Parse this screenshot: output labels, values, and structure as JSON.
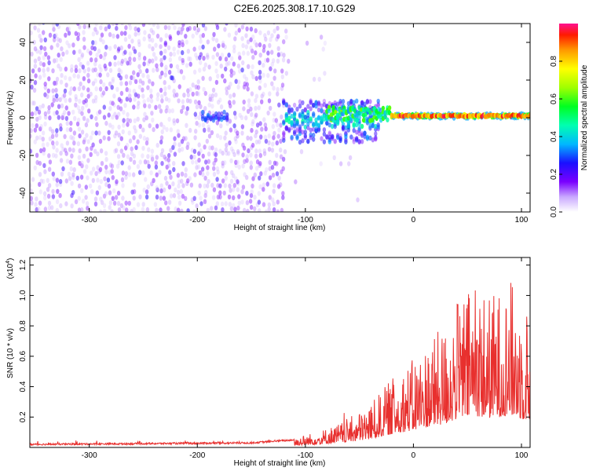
{
  "title": "C2E6.2025.308.17.10.G29",
  "colors": {
    "snr_line": "#e8302e",
    "axis": "#000000",
    "speckle_purple": "#6a00ff",
    "background": "#ffffff"
  },
  "chart_data": [
    {
      "type": "heatmap",
      "name": "spectrogram",
      "title": "C2E6.2025.308.17.10.G29",
      "xlabel": "Height of straight line (km)",
      "ylabel": "Frequency (Hz)",
      "xlim": [
        -355,
        108
      ],
      "ylim": [
        -50,
        50
      ],
      "xticks": [
        -300,
        -200,
        -100,
        0,
        100
      ],
      "yticks": [
        -40,
        -20,
        0,
        20,
        40
      ],
      "colorbar": {
        "label": "Normalized spectral amplitude",
        "range": [
          0,
          1
        ],
        "ticks": [
          0.0,
          0.2,
          0.4,
          0.6,
          0.8
        ],
        "tick_labels": [
          "0.0",
          "0.2",
          "0.4",
          "0.6",
          "0.8"
        ]
      },
      "regions": [
        {
          "x_range": [
            -355,
            -120
          ],
          "freq_range": [
            -50,
            50
          ],
          "amplitude": 0.15,
          "description_value": "dense noise"
        },
        {
          "x_range": [
            -120,
            -40
          ],
          "freq_center": -2,
          "freq_halfwidth": 12,
          "amplitude": 0.3
        },
        {
          "x_range": [
            -80,
            -20
          ],
          "freq_center": 2,
          "freq_halfwidth": 4,
          "amplitude": 0.55
        },
        {
          "x_range": [
            -20,
            108
          ],
          "freq_center": 1,
          "freq_halfwidth": 2,
          "amplitude": 0.9
        }
      ]
    },
    {
      "type": "line",
      "name": "snr",
      "xlabel": "Height of straight line (km)",
      "ylabel": "SNR (10 * v/v)",
      "scale_label": "(x10",
      "scale_exp": "4",
      "scale_close": ")",
      "xlim": [
        -355,
        108
      ],
      "ylim": [
        0,
        1.25
      ],
      "xticks": [
        -300,
        -200,
        -100,
        0,
        100
      ],
      "yticks": [
        0.2,
        0.4,
        0.6,
        0.8,
        1.0,
        1.2
      ],
      "ytick_labels": [
        "0.2",
        "0.4",
        "0.6",
        "0.8",
        "1.0",
        "1.2"
      ],
      "envelope_x": [
        -355,
        -250,
        -150,
        -110,
        -90,
        -70,
        -50,
        -35,
        -25,
        -15,
        0,
        15,
        30,
        40,
        50,
        60,
        70,
        80,
        90,
        100,
        108
      ],
      "envelope_y": [
        0.02,
        0.025,
        0.03,
        0.05,
        0.08,
        0.12,
        0.18,
        0.25,
        0.32,
        0.38,
        0.45,
        0.55,
        0.62,
        0.75,
        0.8,
        0.82,
        0.78,
        0.8,
        0.85,
        0.75,
        0.7
      ],
      "series": [
        {
          "name": "SNR",
          "color": "#e8302e"
        }
      ]
    }
  ]
}
